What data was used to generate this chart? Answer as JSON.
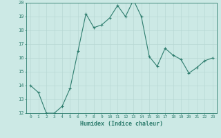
{
  "title": "",
  "xlabel": "Humidex (Indice chaleur)",
  "x_values": [
    0,
    1,
    2,
    3,
    4,
    5,
    6,
    7,
    8,
    9,
    10,
    11,
    12,
    13,
    14,
    15,
    16,
    17,
    18,
    19,
    20,
    21,
    22,
    23
  ],
  "y_values": [
    14,
    13.5,
    12,
    12,
    12.5,
    13.8,
    16.5,
    19.2,
    18.2,
    18.4,
    18.9,
    19.8,
    19.0,
    20.2,
    19.0,
    16.1,
    15.4,
    16.7,
    16.2,
    15.9,
    14.9,
    15.3,
    15.8,
    16.0
  ],
  "ylim": [
    12,
    20
  ],
  "xlim": [
    -0.5,
    23.5
  ],
  "yticks": [
    12,
    13,
    14,
    15,
    16,
    17,
    18,
    19,
    20
  ],
  "xticks": [
    0,
    1,
    2,
    3,
    4,
    5,
    6,
    7,
    8,
    9,
    10,
    11,
    12,
    13,
    14,
    15,
    16,
    17,
    18,
    19,
    20,
    21,
    22,
    23
  ],
  "line_color": "#2e7d6e",
  "marker_color": "#2e7d6e",
  "bg_color": "#cce9e5",
  "grid_color": "#b8d8d4",
  "text_color": "#2e7d6e",
  "font_family": "monospace"
}
